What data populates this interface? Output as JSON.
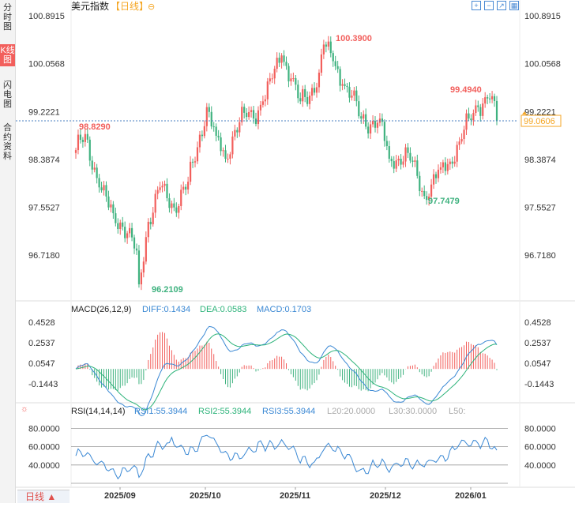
{
  "sidebar": {
    "tabs": [
      {
        "label": "分时图",
        "active": false
      },
      {
        "label": "K线图",
        "active": true
      },
      {
        "label": "闪电图",
        "active": false
      },
      {
        "label": "合约资料",
        "active": false
      }
    ]
  },
  "header": {
    "title": "美元指数",
    "period_tag": "【日线】",
    "toggle_icon": "⊖"
  },
  "toolbar": {
    "icons": [
      "zoom-in-icon",
      "zoom-out-icon",
      "line-chart-icon",
      "grid-icon"
    ]
  },
  "colors": {
    "up": "#f25f5c",
    "down": "#3fb27f",
    "diff": "#3a88d4",
    "dea": "#2db37a",
    "rsi": "#3a88d4",
    "current_price": "#f5a623"
  },
  "chart_data": [
    {
      "type": "candlestick",
      "y_ticks": [
        "100.8915",
        "100.0568",
        "99.2221",
        "98.3874",
        "97.5527",
        "96.7180"
      ],
      "ylim": [
        96.2109,
        100.8915
      ],
      "annotations": {
        "high": "100.3900",
        "low": "96.2109",
        "left_mark": "98.8290",
        "recent_high": "99.4940",
        "recent_low": "97.7479"
      },
      "current_price": "99.0606",
      "x_labels": [
        "2025/09",
        "2025/10",
        "2025/11",
        "2025/12",
        "2026/01"
      ],
      "keypoints": [
        [
          0,
          98.55
        ],
        [
          4,
          98.83
        ],
        [
          10,
          97.9
        ],
        [
          16,
          97.45
        ],
        [
          22,
          97.1
        ],
        [
          26,
          96.8
        ],
        [
          27,
          96.21
        ],
        [
          31,
          97.3
        ],
        [
          36,
          97.9
        ],
        [
          42,
          97.55
        ],
        [
          48,
          98.0
        ],
        [
          52,
          98.6
        ],
        [
          56,
          99.3
        ],
        [
          60,
          98.8
        ],
        [
          64,
          98.4
        ],
        [
          68,
          98.9
        ],
        [
          72,
          99.2
        ],
        [
          76,
          99.1
        ],
        [
          80,
          99.4
        ],
        [
          84,
          99.8
        ],
        [
          88,
          100.2
        ],
        [
          92,
          99.8
        ],
        [
          96,
          99.4
        ],
        [
          100,
          99.5
        ],
        [
          104,
          99.9
        ],
        [
          106,
          100.39
        ],
        [
          110,
          100.1
        ],
        [
          114,
          99.7
        ],
        [
          118,
          99.5
        ],
        [
          122,
          99.1
        ],
        [
          126,
          99.0
        ],
        [
          130,
          99.1
        ],
        [
          134,
          98.4
        ],
        [
          138,
          98.4
        ],
        [
          142,
          98.5
        ],
        [
          146,
          98.1
        ],
        [
          149,
          97.75
        ],
        [
          152,
          97.95
        ],
        [
          156,
          98.25
        ],
        [
          160,
          98.35
        ],
        [
          164,
          98.7
        ],
        [
          168,
          99.1
        ],
        [
          172,
          99.3
        ],
        [
          176,
          99.45
        ],
        [
          178,
          99.49
        ],
        [
          180,
          99.06
        ]
      ]
    },
    {
      "type": "macd",
      "params": "MACD(26,12,9)",
      "legend": {
        "diff": "DIFF:0.1434",
        "dea": "DEA:0.0583",
        "macd": "MACD:0.1703"
      },
      "y_ticks": [
        "0.4528",
        "0.2537",
        "0.0547",
        "-0.1443"
      ],
      "ylim": [
        -0.25,
        0.55
      ]
    },
    {
      "type": "rsi",
      "params": "RSI(14,14,14)",
      "legend": {
        "rsi1": "RSI1:55.3944",
        "rsi2": "RSI2:55.3944",
        "rsi3": "RSI3:55.3944",
        "l20": "L20:20.0000",
        "l30": "L30:30.0000",
        "l50": "L50:"
      },
      "y_ticks": [
        "80.0000",
        "60.0000",
        "40.0000"
      ],
      "ylim": [
        20,
        95
      ]
    }
  ],
  "footer": {
    "period_button": "日线 ▲"
  }
}
